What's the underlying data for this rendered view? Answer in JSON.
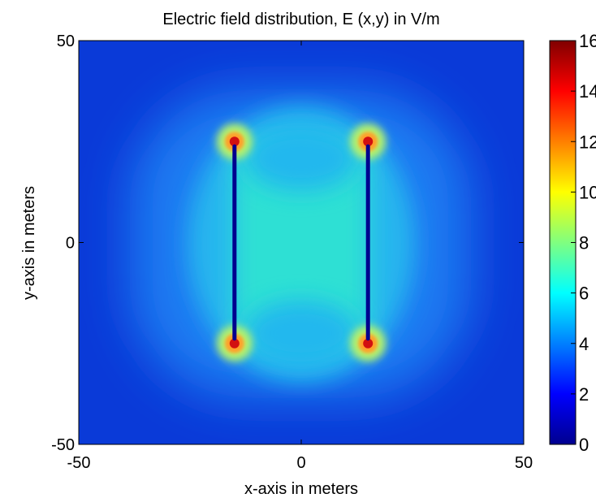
{
  "chart_data": {
    "type": "heatmap",
    "title": "Electric field distribution, E (x,y) in V/m",
    "xlabel": "x-axis in meters",
    "ylabel": "y-axis in meters",
    "xlim": [
      -50,
      50
    ],
    "ylim": [
      -50,
      50
    ],
    "x_ticks": [
      "-50",
      "0",
      "50"
    ],
    "y_ticks": [
      "50",
      "0",
      "-50"
    ],
    "colorbar": {
      "colormap": "jet",
      "range": [
        0,
        16
      ],
      "tick_labels": [
        "16",
        "14",
        "12",
        "10",
        "8",
        "6",
        "4",
        "2",
        "0"
      ]
    },
    "plates": [
      {
        "x": -15,
        "y_from": -25,
        "y_to": 25
      },
      {
        "x": 15,
        "y_from": -25,
        "y_to": 25
      }
    ],
    "field_levels": {
      "between_plates": 6.5,
      "near_plate_tips": 16,
      "at_plates": 0,
      "far_field": 1
    },
    "grid": false
  }
}
